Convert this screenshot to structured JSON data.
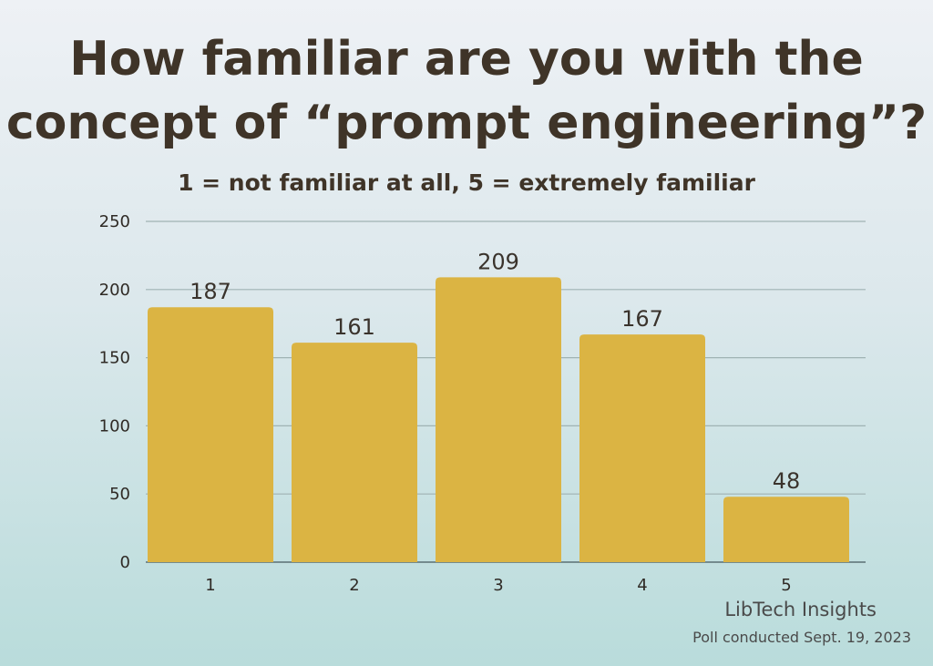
{
  "chart_data": {
    "type": "bar",
    "title_lines": [
      "How familiar are you with the",
      "concept of “prompt engineering”?"
    ],
    "subtitle": "1 = not familiar at all, 5 = extremely familiar",
    "categories": [
      "1",
      "2",
      "3",
      "4",
      "5"
    ],
    "values": [
      187,
      161,
      209,
      167,
      48
    ],
    "ylim": [
      0,
      250
    ],
    "yticks": [
      0,
      50,
      100,
      150,
      200,
      250
    ],
    "grid": true,
    "bar_color": "#dbb443",
    "grid_color": "#9fb2b3"
  },
  "footer": {
    "credit": "LibTech Insights",
    "note": "Poll conducted Sept. 19, 2023"
  }
}
